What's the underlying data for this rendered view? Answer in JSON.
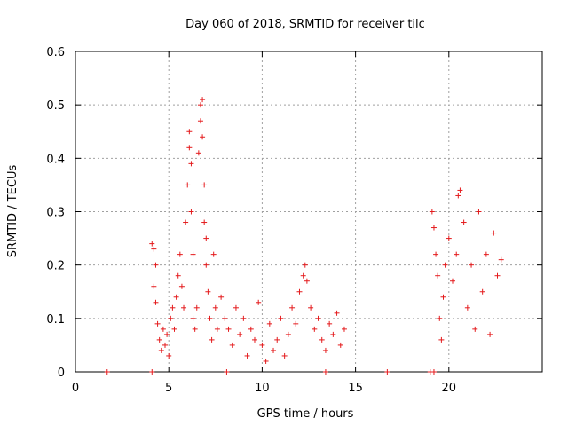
{
  "chart_data": {
    "type": "scatter",
    "title": "Day 060 of 2018, SRMTID for receiver tilc",
    "xlabel": "GPS time / hours",
    "ylabel": "SRMTID / TECUs",
    "xlim": [
      0,
      25
    ],
    "ylim": [
      0,
      0.6
    ],
    "x_ticks": [
      0,
      5,
      10,
      15,
      20
    ],
    "x_tick_labels": [
      "0",
      "5",
      "10",
      "15",
      "20"
    ],
    "y_ticks": [
      0,
      0.1,
      0.2,
      0.3,
      0.4,
      0.5,
      0.6
    ],
    "y_tick_labels": [
      "0",
      "0.1",
      "0.2",
      "0.3",
      "0.4",
      "0.5",
      "0.6"
    ],
    "grid": true,
    "legend": "none",
    "marker": "plus",
    "color": "#e41a1c",
    "series": [
      {
        "values_note": "",
        "points": [
          [
            1.7,
            0.0
          ],
          [
            4.1,
            0.0
          ],
          [
            8.1,
            0.0
          ],
          [
            13.4,
            0.0
          ],
          [
            16.7,
            0.0
          ],
          [
            19.0,
            0.0
          ],
          [
            19.2,
            0.0
          ],
          [
            4.1,
            0.24
          ],
          [
            4.2,
            0.23
          ],
          [
            4.3,
            0.2
          ],
          [
            4.2,
            0.16
          ],
          [
            4.3,
            0.13
          ],
          [
            4.4,
            0.09
          ],
          [
            4.5,
            0.06
          ],
          [
            4.6,
            0.04
          ],
          [
            4.7,
            0.08
          ],
          [
            4.8,
            0.05
          ],
          [
            4.9,
            0.07
          ],
          [
            5.0,
            0.03
          ],
          [
            5.1,
            0.1
          ],
          [
            5.2,
            0.12
          ],
          [
            5.3,
            0.08
          ],
          [
            5.4,
            0.14
          ],
          [
            5.5,
            0.18
          ],
          [
            5.6,
            0.22
          ],
          [
            5.7,
            0.16
          ],
          [
            5.8,
            0.12
          ],
          [
            5.9,
            0.28
          ],
          [
            6.0,
            0.35
          ],
          [
            6.1,
            0.45
          ],
          [
            6.1,
            0.42
          ],
          [
            6.2,
            0.3
          ],
          [
            6.2,
            0.39
          ],
          [
            6.3,
            0.22
          ],
          [
            6.3,
            0.1
          ],
          [
            6.4,
            0.08
          ],
          [
            6.5,
            0.12
          ],
          [
            6.6,
            0.41
          ],
          [
            6.7,
            0.5
          ],
          [
            6.7,
            0.47
          ],
          [
            6.8,
            0.51
          ],
          [
            6.8,
            0.44
          ],
          [
            6.9,
            0.35
          ],
          [
            6.9,
            0.28
          ],
          [
            7.0,
            0.25
          ],
          [
            7.0,
            0.2
          ],
          [
            7.1,
            0.15
          ],
          [
            7.2,
            0.1
          ],
          [
            7.3,
            0.06
          ],
          [
            7.4,
            0.22
          ],
          [
            7.5,
            0.12
          ],
          [
            7.6,
            0.08
          ],
          [
            7.8,
            0.14
          ],
          [
            8.0,
            0.1
          ],
          [
            8.2,
            0.08
          ],
          [
            8.4,
            0.05
          ],
          [
            8.6,
            0.12
          ],
          [
            8.8,
            0.07
          ],
          [
            9.0,
            0.1
          ],
          [
            9.2,
            0.03
          ],
          [
            9.4,
            0.08
          ],
          [
            9.6,
            0.06
          ],
          [
            9.8,
            0.13
          ],
          [
            10.0,
            0.05
          ],
          [
            10.2,
            0.02
          ],
          [
            10.4,
            0.09
          ],
          [
            10.6,
            0.04
          ],
          [
            10.8,
            0.06
          ],
          [
            11.0,
            0.1
          ],
          [
            11.2,
            0.03
          ],
          [
            11.4,
            0.07
          ],
          [
            11.6,
            0.12
          ],
          [
            11.8,
            0.09
          ],
          [
            12.0,
            0.15
          ],
          [
            12.2,
            0.18
          ],
          [
            12.3,
            0.2
          ],
          [
            12.4,
            0.17
          ],
          [
            12.6,
            0.12
          ],
          [
            12.8,
            0.08
          ],
          [
            13.0,
            0.1
          ],
          [
            13.2,
            0.06
          ],
          [
            13.4,
            0.04
          ],
          [
            13.6,
            0.09
          ],
          [
            13.8,
            0.07
          ],
          [
            14.0,
            0.11
          ],
          [
            14.2,
            0.05
          ],
          [
            14.4,
            0.08
          ],
          [
            19.1,
            0.3
          ],
          [
            19.2,
            0.27
          ],
          [
            19.3,
            0.22
          ],
          [
            19.4,
            0.18
          ],
          [
            19.5,
            0.1
          ],
          [
            19.6,
            0.06
          ],
          [
            19.7,
            0.14
          ],
          [
            19.8,
            0.2
          ],
          [
            20.0,
            0.25
          ],
          [
            20.2,
            0.17
          ],
          [
            20.4,
            0.22
          ],
          [
            20.5,
            0.33
          ],
          [
            20.6,
            0.34
          ],
          [
            20.8,
            0.28
          ],
          [
            21.0,
            0.12
          ],
          [
            21.2,
            0.2
          ],
          [
            21.4,
            0.08
          ],
          [
            21.6,
            0.3
          ],
          [
            21.8,
            0.15
          ],
          [
            22.0,
            0.22
          ],
          [
            22.2,
            0.07
          ],
          [
            22.4,
            0.26
          ],
          [
            22.6,
            0.18
          ],
          [
            22.8,
            0.21
          ]
        ]
      }
    ]
  }
}
